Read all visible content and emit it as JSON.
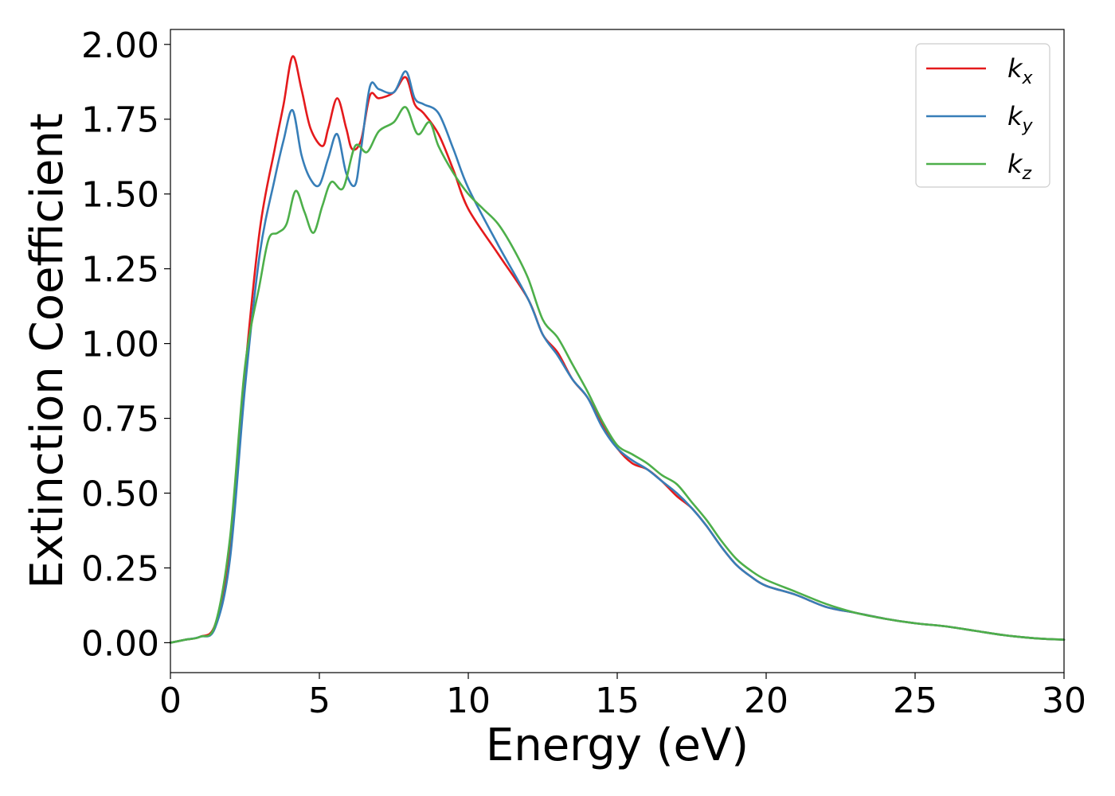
{
  "chart_data": {
    "type": "line",
    "xlabel": "Energy (eV)",
    "ylabel": "Extinction Coefficient",
    "xlim": [
      0,
      30
    ],
    "ylim": [
      -0.1,
      2.05
    ],
    "xticks": [
      0,
      5,
      10,
      15,
      20,
      25,
      30
    ],
    "xtick_labels": [
      "0",
      "5",
      "10",
      "15",
      "20",
      "25",
      "30"
    ],
    "yticks": [
      0,
      0.25,
      0.5,
      0.75,
      1.0,
      1.25,
      1.5,
      1.75,
      2.0
    ],
    "ytick_labels": [
      "0.00",
      "0.25",
      "0.50",
      "0.75",
      "1.00",
      "1.25",
      "1.50",
      "1.75",
      "2.00"
    ],
    "grid": false,
    "legend_position": "top-right",
    "series": [
      {
        "name": "k",
        "subscript": "x",
        "color": "#e41a1c",
        "points": [
          [
            0,
            0
          ],
          [
            0.5,
            0.01
          ],
          [
            1.0,
            0.02
          ],
          [
            1.5,
            0.06
          ],
          [
            2.0,
            0.3
          ],
          [
            2.5,
            0.9
          ],
          [
            3.0,
            1.38
          ],
          [
            3.5,
            1.65
          ],
          [
            3.8,
            1.8
          ],
          [
            4.1,
            1.96
          ],
          [
            4.4,
            1.85
          ],
          [
            4.7,
            1.72
          ],
          [
            5.1,
            1.66
          ],
          [
            5.3,
            1.72
          ],
          [
            5.6,
            1.82
          ],
          [
            5.9,
            1.72
          ],
          [
            6.1,
            1.65
          ],
          [
            6.4,
            1.68
          ],
          [
            6.7,
            1.83
          ],
          [
            7.0,
            1.82
          ],
          [
            7.5,
            1.84
          ],
          [
            7.9,
            1.89
          ],
          [
            8.2,
            1.8
          ],
          [
            8.5,
            1.77
          ],
          [
            9.0,
            1.7
          ],
          [
            9.5,
            1.58
          ],
          [
            10.0,
            1.45
          ],
          [
            11.0,
            1.3
          ],
          [
            12.0,
            1.15
          ],
          [
            12.5,
            1.03
          ],
          [
            13.0,
            0.97
          ],
          [
            13.5,
            0.88
          ],
          [
            14.0,
            0.82
          ],
          [
            14.5,
            0.73
          ],
          [
            15.0,
            0.65
          ],
          [
            15.5,
            0.6
          ],
          [
            16.0,
            0.58
          ],
          [
            16.5,
            0.54
          ],
          [
            17.0,
            0.49
          ],
          [
            17.5,
            0.45
          ],
          [
            18.0,
            0.39
          ],
          [
            18.5,
            0.32
          ],
          [
            19.0,
            0.26
          ],
          [
            19.5,
            0.22
          ],
          [
            20.0,
            0.19
          ],
          [
            21.0,
            0.16
          ],
          [
            22.0,
            0.12
          ],
          [
            23.0,
            0.1
          ],
          [
            24.0,
            0.08
          ],
          [
            25.0,
            0.065
          ],
          [
            26.0,
            0.055
          ],
          [
            27.0,
            0.04
          ],
          [
            28.0,
            0.025
          ],
          [
            29.0,
            0.015
          ],
          [
            30.0,
            0.01
          ]
        ]
      },
      {
        "name": "k",
        "subscript": "y",
        "color": "#377eb8",
        "points": [
          [
            0,
            0
          ],
          [
            0.5,
            0.01
          ],
          [
            1.0,
            0.02
          ],
          [
            1.5,
            0.05
          ],
          [
            2.0,
            0.28
          ],
          [
            2.5,
            0.85
          ],
          [
            3.0,
            1.3
          ],
          [
            3.5,
            1.55
          ],
          [
            3.8,
            1.68
          ],
          [
            4.1,
            1.78
          ],
          [
            4.4,
            1.63
          ],
          [
            4.7,
            1.55
          ],
          [
            5.0,
            1.53
          ],
          [
            5.3,
            1.62
          ],
          [
            5.6,
            1.7
          ],
          [
            5.9,
            1.57
          ],
          [
            6.2,
            1.53
          ],
          [
            6.4,
            1.65
          ],
          [
            6.7,
            1.86
          ],
          [
            7.0,
            1.85
          ],
          [
            7.5,
            1.84
          ],
          [
            7.9,
            1.91
          ],
          [
            8.2,
            1.82
          ],
          [
            8.5,
            1.8
          ],
          [
            9.0,
            1.77
          ],
          [
            9.5,
            1.65
          ],
          [
            10.0,
            1.52
          ],
          [
            11.0,
            1.33
          ],
          [
            12.0,
            1.15
          ],
          [
            12.5,
            1.03
          ],
          [
            13.0,
            0.96
          ],
          [
            13.5,
            0.88
          ],
          [
            14.0,
            0.82
          ],
          [
            14.5,
            0.72
          ],
          [
            15.0,
            0.65
          ],
          [
            15.5,
            0.61
          ],
          [
            16.0,
            0.58
          ],
          [
            16.5,
            0.54
          ],
          [
            17.0,
            0.5
          ],
          [
            17.5,
            0.45
          ],
          [
            18.0,
            0.39
          ],
          [
            18.5,
            0.32
          ],
          [
            19.0,
            0.26
          ],
          [
            19.5,
            0.22
          ],
          [
            20.0,
            0.19
          ],
          [
            21.0,
            0.16
          ],
          [
            22.0,
            0.12
          ],
          [
            23.0,
            0.1
          ],
          [
            24.0,
            0.08
          ],
          [
            25.0,
            0.065
          ],
          [
            26.0,
            0.055
          ],
          [
            27.0,
            0.04
          ],
          [
            28.0,
            0.025
          ],
          [
            29.0,
            0.015
          ],
          [
            30.0,
            0.01
          ]
        ]
      },
      {
        "name": "k",
        "subscript": "z",
        "color": "#4daf4a",
        "points": [
          [
            0,
            0
          ],
          [
            0.5,
            0.01
          ],
          [
            1.0,
            0.02
          ],
          [
            1.5,
            0.06
          ],
          [
            2.0,
            0.35
          ],
          [
            2.5,
            0.92
          ],
          [
            3.0,
            1.2
          ],
          [
            3.3,
            1.35
          ],
          [
            3.6,
            1.37
          ],
          [
            3.9,
            1.4
          ],
          [
            4.2,
            1.51
          ],
          [
            4.5,
            1.44
          ],
          [
            4.8,
            1.37
          ],
          [
            5.1,
            1.46
          ],
          [
            5.4,
            1.54
          ],
          [
            5.8,
            1.52
          ],
          [
            6.2,
            1.66
          ],
          [
            6.6,
            1.64
          ],
          [
            7.0,
            1.71
          ],
          [
            7.5,
            1.74
          ],
          [
            7.9,
            1.79
          ],
          [
            8.3,
            1.7
          ],
          [
            8.7,
            1.74
          ],
          [
            9.0,
            1.66
          ],
          [
            9.5,
            1.57
          ],
          [
            10.0,
            1.5
          ],
          [
            10.5,
            1.45
          ],
          [
            11.0,
            1.4
          ],
          [
            11.5,
            1.32
          ],
          [
            12.0,
            1.22
          ],
          [
            12.5,
            1.08
          ],
          [
            13.0,
            1.02
          ],
          [
            13.5,
            0.93
          ],
          [
            14.0,
            0.84
          ],
          [
            14.5,
            0.74
          ],
          [
            15.0,
            0.66
          ],
          [
            15.5,
            0.63
          ],
          [
            16.0,
            0.6
          ],
          [
            16.5,
            0.56
          ],
          [
            17.0,
            0.53
          ],
          [
            17.5,
            0.47
          ],
          [
            18.0,
            0.41
          ],
          [
            18.5,
            0.34
          ],
          [
            19.0,
            0.28
          ],
          [
            19.5,
            0.24
          ],
          [
            20.0,
            0.21
          ],
          [
            21.0,
            0.17
          ],
          [
            22.0,
            0.13
          ],
          [
            23.0,
            0.1
          ],
          [
            24.0,
            0.08
          ],
          [
            25.0,
            0.065
          ],
          [
            26.0,
            0.055
          ],
          [
            27.0,
            0.04
          ],
          [
            28.0,
            0.025
          ],
          [
            29.0,
            0.015
          ],
          [
            30.0,
            0.01
          ]
        ]
      }
    ]
  }
}
